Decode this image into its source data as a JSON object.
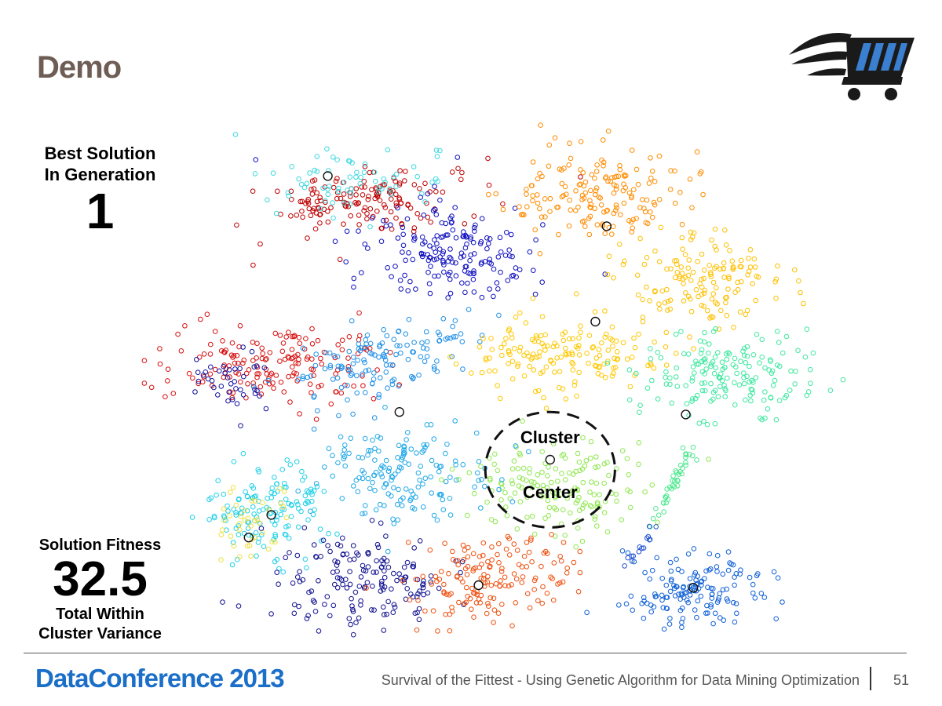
{
  "slide": {
    "title": "Demo",
    "generation": {
      "label_line1": "Best Solution",
      "label_line2": "In Generation",
      "value": "1"
    },
    "fitness": {
      "label": "Solution Fitness",
      "value": "32.5",
      "sublabel_line1": "Total Within",
      "sublabel_line2": "Cluster Variance"
    },
    "annotation": {
      "line1": "Cluster",
      "line2": "Center"
    },
    "footer": {
      "brand": "DataConference 2013",
      "subtitle": "Survival of the Fittest - Using Genetic Algorithm for Data Mining Optimization",
      "page": "51"
    }
  },
  "logo": {
    "icon": "shopping-cart-icon",
    "colors": {
      "dark": "#1a1a1a",
      "accent": "#3a7fd0"
    }
  },
  "chart_data": {
    "type": "scatter",
    "title": "",
    "xlabel": "",
    "ylabel": "",
    "grid": false,
    "axes_visible": false,
    "xlim": [
      0,
      100
    ],
    "ylim": [
      0,
      100
    ],
    "point_counts_note": "points per cluster are estimated; only the cluster structure is read from the image",
    "clusters": [
      {
        "color": "#c00000",
        "center": [
          35.5,
          86.5
        ],
        "spread": [
          7.5,
          3.3
        ],
        "n": 160,
        "rotation": 8
      },
      {
        "color": "#3fd8e0",
        "center": [
          35.0,
          90.0
        ],
        "spread": [
          6.0,
          2.8
        ],
        "n": 70,
        "rotation": 0
      },
      {
        "color": "#1010c0",
        "center": [
          47.5,
          76.5
        ],
        "spread": [
          6.5,
          4.6
        ],
        "n": 180,
        "rotation": -10
      },
      {
        "color": "#ff8c00",
        "center": [
          67.0,
          88.0
        ],
        "spread": [
          6.0,
          5.2
        ],
        "n": 170,
        "rotation": 0
      },
      {
        "color": "#ffc000",
        "center": [
          80.5,
          70.5
        ],
        "spread": [
          5.0,
          4.6
        ],
        "n": 150,
        "rotation": 0
      },
      {
        "color": "#d81010",
        "center": [
          23.5,
          54.0
        ],
        "spread": [
          7.5,
          3.8
        ],
        "n": 170,
        "rotation": 0
      },
      {
        "color": "#1010a0",
        "center": [
          17.5,
          50.5
        ],
        "spread": [
          3.0,
          3.2
        ],
        "n": 40,
        "rotation": 0
      },
      {
        "color": "#1e90e8",
        "center": [
          38.5,
          55.0
        ],
        "spread": [
          6.0,
          3.4
        ],
        "n": 140,
        "rotation": 20
      },
      {
        "color": "#ffc800",
        "center": [
          62.0,
          56.0
        ],
        "spread": [
          6.0,
          3.8
        ],
        "n": 160,
        "rotation": 0
      },
      {
        "color": "#40e8a0",
        "center": [
          83.5,
          51.5
        ],
        "spread": [
          6.0,
          4.4
        ],
        "n": 170,
        "rotation": 0
      },
      {
        "color": "#90e850",
        "center": [
          62.5,
          29.5
        ],
        "spread": [
          6.8,
          4.4
        ],
        "n": 160,
        "rotation": 0
      },
      {
        "color": "#20a8e8",
        "center": [
          41.5,
          32.0
        ],
        "spread": [
          5.5,
          4.6
        ],
        "n": 160,
        "rotation": 0
      },
      {
        "color": "#20d0e8",
        "center": [
          23.5,
          25.0
        ],
        "spread": [
          3.8,
          4.6
        ],
        "n": 140,
        "rotation": 0
      },
      {
        "color": "#f0e040",
        "center": [
          20.5,
          22.0
        ],
        "spread": [
          2.5,
          3.6
        ],
        "n": 40,
        "rotation": 0
      },
      {
        "color": "#101090",
        "center": [
          35.5,
          11.0
        ],
        "spread": [
          5.8,
          5.4
        ],
        "n": 170,
        "rotation": 0
      },
      {
        "color": "#f05010",
        "center": [
          51.5,
          10.5
        ],
        "spread": [
          5.5,
          4.4
        ],
        "n": 160,
        "rotation": 15
      },
      {
        "color": "#1060d8",
        "center": [
          79.5,
          9.5
        ],
        "spread": [
          4.8,
          4.2
        ],
        "n": 150,
        "rotation": 0
      },
      {
        "color": "#50e890",
        "from": [
          74.5,
          22.0
        ],
        "to": [
          79.0,
          37.5
        ],
        "spread": [
          0.5,
          0.5
        ],
        "n": 40,
        "shape": "line"
      },
      {
        "color": "#2050d0",
        "from": [
          71.0,
          14.0
        ],
        "to": [
          74.5,
          22.0
        ],
        "spread": [
          0.4,
          0.4
        ],
        "n": 14,
        "shape": "line"
      }
    ],
    "centroids": [
      {
        "x": 31.0,
        "y": 91.5
      },
      {
        "x": 68.0,
        "y": 81.5
      },
      {
        "x": 66.5,
        "y": 62.5
      },
      {
        "x": 40.5,
        "y": 44.5
      },
      {
        "x": 78.5,
        "y": 44.0
      },
      {
        "x": 60.5,
        "y": 35.0
      },
      {
        "x": 23.5,
        "y": 24.0
      },
      {
        "x": 20.5,
        "y": 19.5
      },
      {
        "x": 51.0,
        "y": 10.0
      },
      {
        "x": 79.5,
        "y": 9.5
      }
    ],
    "annotation": {
      "text": "Cluster Center",
      "ellipse_center": [
        60.5,
        33.0
      ],
      "ellipse_radii": [
        8.6,
        11.5
      ]
    }
  }
}
